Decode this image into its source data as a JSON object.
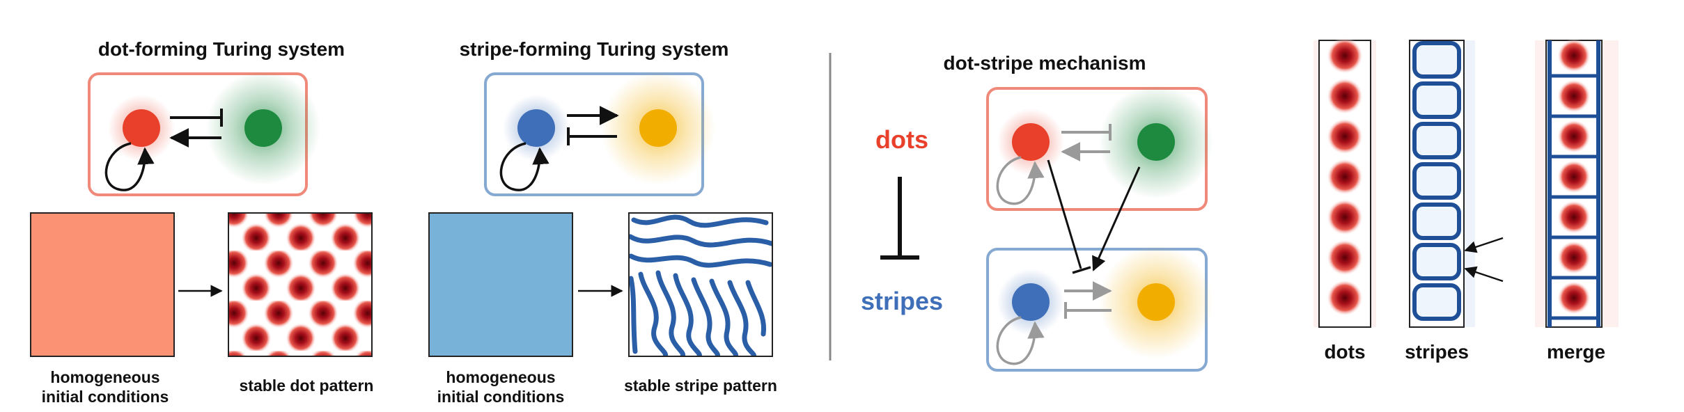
{
  "panels": {
    "dot_system": {
      "title": "dot-forming Turing system",
      "initial_caption_line1": "homogeneous",
      "initial_caption_line2": "initial conditions",
      "result_caption": "stable dot pattern"
    },
    "stripe_system": {
      "title": "stripe-forming Turing system",
      "initial_caption_line1": "homogeneous",
      "initial_caption_line2": "initial conditions",
      "result_caption": "stable stripe pattern"
    },
    "mechanism": {
      "title": "dot-stripe mechanism",
      "dots_label": "dots",
      "stripes_label": "stripes"
    },
    "strips": {
      "dots_label": "dots",
      "stripes_label": "stripes",
      "merge_label": "merge"
    }
  },
  "colors": {
    "dot_activator": "#e8402a",
    "dot_inhibitor": "#1e8a40",
    "stripe_activator": "#3f6fb8",
    "stripe_inhibitor": "#f2ae00",
    "dot_box_border": "#ef8a7a",
    "stripe_box_border": "#86a9d2",
    "dot_initial_fill": "#fb9274",
    "stripe_initial_fill": "#79b2d8",
    "dots_text": "#e8402a",
    "stripes_text": "#3f6fb8"
  }
}
